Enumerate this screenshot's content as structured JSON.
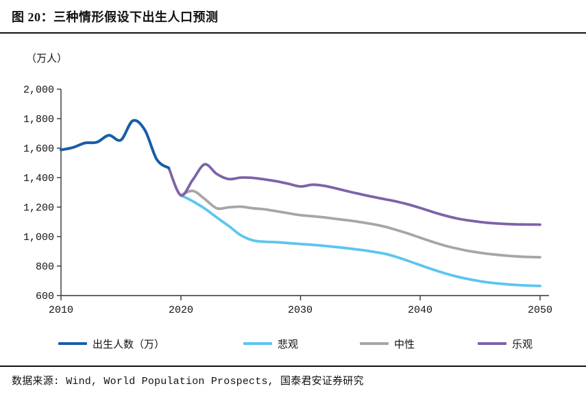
{
  "page": {
    "title": "图 20：三种情形假设下出生人口预测",
    "source": "数据来源: Wind, World Population Prospects, 国泰君安证券研究"
  },
  "chart_data": {
    "type": "line",
    "title": "三种情形假设下出生人口预测",
    "unit_label": "（万人）",
    "grid": "off",
    "legend_position": "bottom",
    "x_axis": {
      "min": 2010,
      "max": 2050,
      "tick_years": [
        2010,
        2020,
        2030,
        2040,
        2050
      ],
      "tick_labels": [
        "2010",
        "2020",
        "2030",
        "2040",
        "2050"
      ]
    },
    "y_axis": {
      "min": 600,
      "max": 2000,
      "tick_values": [
        2000,
        1800,
        1600,
        1400,
        1200,
        1000,
        800,
        600
      ],
      "tick_labels": [
        "2,000",
        "1,800",
        "1,600",
        "1,400",
        "1,200",
        "1,000",
        "800",
        "600"
      ]
    },
    "series": [
      {
        "name": "出生人数（万）",
        "color": "#185DA8",
        "start_year": 2010,
        "values": [
          1588,
          1604,
          1635,
          1640,
          1687,
          1655,
          1786,
          1723,
          1523,
          1465
        ]
      },
      {
        "name": "悲观",
        "color": "#5BC5F0",
        "start_year": 2020,
        "values": [
          1280,
          1240,
          1190,
          1130,
          1072,
          1010,
          975,
          965,
          962,
          956,
          950,
          944,
          937,
          929,
          920,
          910,
          898,
          884,
          862,
          835,
          806,
          778,
          752,
          730,
          712,
          697,
          686,
          678,
          672,
          668,
          665
        ]
      },
      {
        "name": "中性",
        "color": "#A6A6A6",
        "start_year": 2020,
        "values": [
          1280,
          1310,
          1255,
          1192,
          1198,
          1203,
          1192,
          1185,
          1172,
          1158,
          1145,
          1138,
          1130,
          1120,
          1110,
          1098,
          1085,
          1068,
          1045,
          1020,
          992,
          965,
          940,
          920,
          903,
          890,
          880,
          872,
          866,
          862,
          860
        ]
      },
      {
        "name": "乐观",
        "color": "#7D62A8",
        "start_year": 2019,
        "values": [
          1465,
          1280,
          1385,
          1490,
          1425,
          1390,
          1400,
          1398,
          1388,
          1375,
          1358,
          1340,
          1352,
          1344,
          1326,
          1306,
          1288,
          1270,
          1254,
          1238,
          1218,
          1194,
          1168,
          1144,
          1124,
          1110,
          1099,
          1091,
          1086,
          1083,
          1082,
          1081
        ]
      }
    ]
  }
}
